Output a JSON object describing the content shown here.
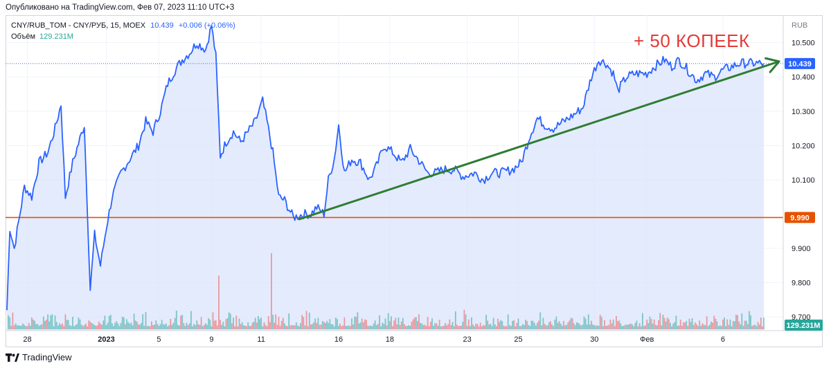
{
  "header": {
    "published": "Опубликовано на TradingView.com, Фев 07, 2023 11:10 UTC+3"
  },
  "legend": {
    "symbol": "CNY/RUB_TOM - CNY/РУБ, 15, MOEX",
    "price": "10.439",
    "change": "+0.006 (+0.06%)",
    "volume_label": "Объём",
    "volume_value": "129.231M"
  },
  "annotation": "+ 50 КОПЕЕК",
  "footer": {
    "brand": "TradingView"
  },
  "colors": {
    "line": "#2962ff",
    "area": "#dbe4fb",
    "support": "#e65100",
    "trend": "#2e7d32",
    "vol_up": "#26a69a",
    "vol_down": "#ef5350"
  },
  "chart_data": {
    "type": "area",
    "currency": "RUB",
    "ylim": [
      9.66,
      10.58
    ],
    "y_ticks": [
      "10.500",
      "10.400",
      "10.300",
      "10.200",
      "10.100",
      "9.900",
      "9.800",
      "9.700"
    ],
    "x_ticks": [
      {
        "label": "28",
        "i": 14
      },
      {
        "label": "2023",
        "i": 68
      },
      {
        "label": "5",
        "i": 104
      },
      {
        "label": "9",
        "i": 140
      },
      {
        "label": "11",
        "i": 174
      },
      {
        "label": "16",
        "i": 227
      },
      {
        "label": "18",
        "i": 262
      },
      {
        "label": "23",
        "i": 315
      },
      {
        "label": "25",
        "i": 350
      },
      {
        "label": "30",
        "i": 402
      },
      {
        "label": "Фев",
        "i": 438
      },
      {
        "label": "6",
        "i": 490
      }
    ],
    "n_points": 519,
    "anchors": [
      [
        0,
        9.72
      ],
      [
        2,
        9.96
      ],
      [
        5,
        9.9
      ],
      [
        12,
        10.08
      ],
      [
        17,
        10.05
      ],
      [
        22,
        10.15
      ],
      [
        28,
        10.18
      ],
      [
        33,
        10.25
      ],
      [
        37,
        10.32
      ],
      [
        40,
        10.05
      ],
      [
        45,
        10.15
      ],
      [
        50,
        10.22
      ],
      [
        53,
        10.26
      ],
      [
        55,
        10.02
      ],
      [
        57,
        9.78
      ],
      [
        60,
        9.94
      ],
      [
        64,
        9.85
      ],
      [
        68,
        9.96
      ],
      [
        72,
        10.05
      ],
      [
        78,
        10.12
      ],
      [
        84,
        10.16
      ],
      [
        90,
        10.2
      ],
      [
        95,
        10.27
      ],
      [
        100,
        10.24
      ],
      [
        105,
        10.3
      ],
      [
        110,
        10.38
      ],
      [
        115,
        10.42
      ],
      [
        120,
        10.45
      ],
      [
        125,
        10.47
      ],
      [
        130,
        10.5
      ],
      [
        136,
        10.48
      ],
      [
        140,
        10.55
      ],
      [
        143,
        10.46
      ],
      [
        146,
        10.17
      ],
      [
        150,
        10.21
      ],
      [
        155,
        10.24
      ],
      [
        160,
        10.21
      ],
      [
        165,
        10.24
      ],
      [
        170,
        10.27
      ],
      [
        175,
        10.33
      ],
      [
        178,
        10.27
      ],
      [
        182,
        10.18
      ],
      [
        186,
        10.05
      ],
      [
        190,
        10.04
      ],
      [
        196,
        9.99
      ],
      [
        203,
        10.0
      ],
      [
        208,
        10.0
      ],
      [
        212,
        10.02
      ],
      [
        217,
        10.0
      ],
      [
        220,
        10.1
      ],
      [
        224,
        10.16
      ],
      [
        227,
        10.26
      ],
      [
        231,
        10.12
      ],
      [
        236,
        10.16
      ],
      [
        242,
        10.15
      ],
      [
        248,
        10.1
      ],
      [
        253,
        10.14
      ],
      [
        258,
        10.2
      ],
      [
        264,
        10.18
      ],
      [
        270,
        10.15
      ],
      [
        276,
        10.19
      ],
      [
        283,
        10.15
      ],
      [
        288,
        10.12
      ],
      [
        293,
        10.12
      ],
      [
        299,
        10.13
      ],
      [
        306,
        10.13
      ],
      [
        312,
        10.11
      ],
      [
        320,
        10.12
      ],
      [
        326,
        10.1
      ],
      [
        332,
        10.12
      ],
      [
        338,
        10.12
      ],
      [
        346,
        10.13
      ],
      [
        352,
        10.15
      ],
      [
        358,
        10.23
      ],
      [
        363,
        10.28
      ],
      [
        368,
        10.26
      ],
      [
        374,
        10.25
      ],
      [
        381,
        10.27
      ],
      [
        388,
        10.29
      ],
      [
        394,
        10.31
      ],
      [
        400,
        10.4
      ],
      [
        405,
        10.45
      ],
      [
        410,
        10.44
      ],
      [
        415,
        10.41
      ],
      [
        418,
        10.36
      ],
      [
        424,
        10.4
      ],
      [
        430,
        10.41
      ],
      [
        438,
        10.41
      ],
      [
        443,
        10.43
      ],
      [
        450,
        10.45
      ],
      [
        455,
        10.43
      ],
      [
        460,
        10.45
      ],
      [
        466,
        10.42
      ],
      [
        472,
        10.39
      ],
      [
        478,
        10.41
      ],
      [
        484,
        10.4
      ],
      [
        490,
        10.42
      ],
      [
        496,
        10.43
      ],
      [
        502,
        10.44
      ],
      [
        510,
        10.44
      ],
      [
        518,
        10.439
      ]
    ],
    "support_level": 9.99,
    "support_label": "9.990",
    "trend_line": {
      "from": [
        200,
        9.985
      ],
      "to": [
        518,
        10.435
      ]
    },
    "last_price": 10.439,
    "last_label": "10.439",
    "volume": {
      "max": 0.78,
      "spikes": [
        {
          "i": 145,
          "v": 0.55
        },
        {
          "i": 181,
          "v": 0.78
        }
      ],
      "last_label": "129.231M"
    }
  }
}
